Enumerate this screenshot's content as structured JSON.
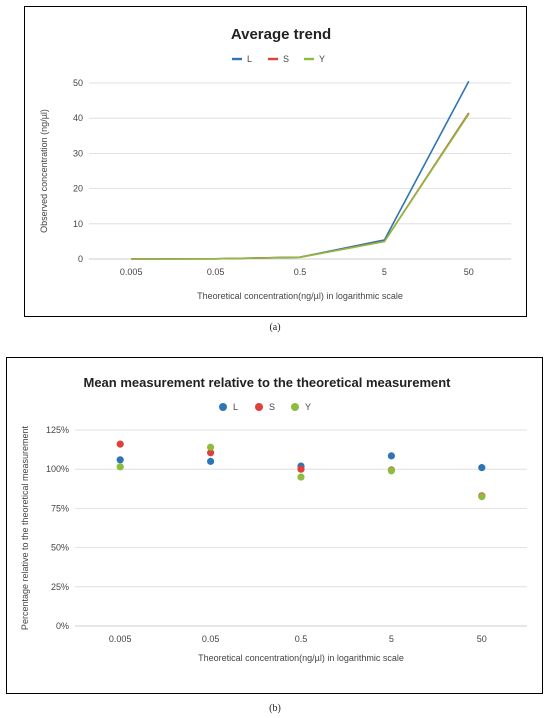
{
  "chart_data": [
    {
      "type": "line",
      "title": "Average trend",
      "xlabel": "Theoretical concentration(ng/µl) in logarithmic scale",
      "ylabel": "Observed concentration (ng/µl)",
      "categories": [
        "0.005",
        "0.05",
        "0.5",
        "5",
        "50"
      ],
      "yticks": [
        "0",
        "10",
        "20",
        "30",
        "40",
        "50"
      ],
      "ylim": [
        0,
        50
      ],
      "legend": "top",
      "grid": true,
      "series": [
        {
          "name": "L",
          "color": "#2e75b6",
          "values": [
            0.005,
            0.05,
            0.5,
            5.4,
            50.5
          ]
        },
        {
          "name": "S",
          "color": "#e0403a",
          "values": [
            0.006,
            0.055,
            0.5,
            5.0,
            41.5
          ]
        },
        {
          "name": "Y",
          "color": "#8cbd3f",
          "values": [
            0.005,
            0.057,
            0.48,
            4.95,
            41.2
          ]
        }
      ]
    },
    {
      "type": "scatter",
      "title": "Mean measurement relative to the theoretical measurement",
      "xlabel": "Theoretical concentration(ng/µl) in logarithmic scale",
      "ylabel": "Percentage relative to the theoretical measurement",
      "categories": [
        "0.005",
        "0.05",
        "0.5",
        "5",
        "50"
      ],
      "yticks": [
        "0%",
        "25%",
        "50%",
        "75%",
        "100%",
        "125%"
      ],
      "ylim": [
        0,
        125
      ],
      "legend": "top",
      "grid": true,
      "series": [
        {
          "name": "L",
          "color": "#2e75b6",
          "values": [
            106,
            105,
            102,
            108.5,
            101
          ]
        },
        {
          "name": "S",
          "color": "#e0403a",
          "values": [
            116,
            110.5,
            100,
            99.5,
            83
          ]
        },
        {
          "name": "Y",
          "color": "#8cbd3f",
          "values": [
            101.5,
            114,
            95,
            99,
            82.5
          ]
        }
      ]
    }
  ],
  "captions": {
    "a": "(a)",
    "b": "(b)"
  }
}
